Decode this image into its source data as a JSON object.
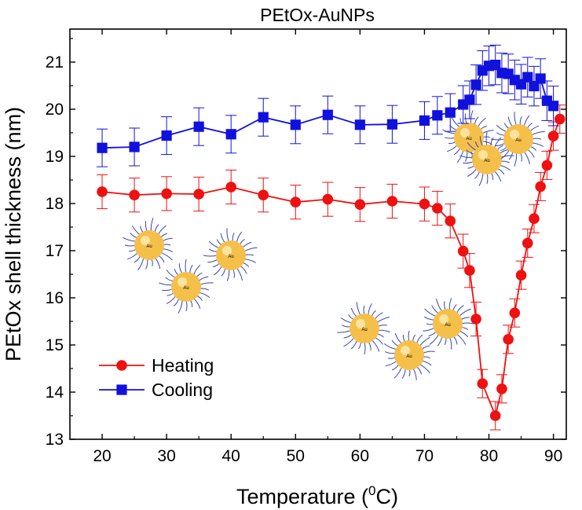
{
  "chart_data": {
    "type": "line",
    "title": "PEtOx-AuNPs",
    "xlabel": "Temperature (",
    "xlabel_sup": "0",
    "xlabel_end": "C)",
    "ylabel": "PEtOx shell thickness (nm)",
    "xlim": [
      15,
      92
    ],
    "ylim": [
      13,
      21.7
    ],
    "xticks": [
      20,
      30,
      40,
      50,
      60,
      70,
      80,
      90
    ],
    "yticks": [
      13,
      14,
      15,
      16,
      17,
      18,
      19,
      20,
      21
    ],
    "legend_position": "lower-left",
    "grid": false,
    "series": [
      {
        "name": "Heating",
        "color": "#ee1111",
        "marker": "circle",
        "x": [
          20,
          25,
          30,
          35,
          40,
          45,
          50,
          55,
          60,
          65,
          70,
          72,
          74,
          76,
          77,
          78,
          79,
          81,
          82,
          83,
          84,
          85,
          86,
          87,
          88,
          89,
          90,
          91
        ],
        "y": [
          18.25,
          18.18,
          18.21,
          18.2,
          18.35,
          18.18,
          18.03,
          18.09,
          17.98,
          18.05,
          17.99,
          17.9,
          17.63,
          16.99,
          16.58,
          15.55,
          14.18,
          13.5,
          14.07,
          15.12,
          15.68,
          16.48,
          17.16,
          17.68,
          18.36,
          18.81,
          19.43,
          19.79
        ],
        "error": [
          0.36,
          0.36,
          0.36,
          0.36,
          0.36,
          0.36,
          0.36,
          0.36,
          0.36,
          0.36,
          0.36,
          0.36,
          0.36,
          0.36,
          0.36,
          0.36,
          0.3,
          0.3,
          0.3,
          0.3,
          0.3,
          0.3,
          0.3,
          0.3,
          0.3,
          0.3,
          0.3,
          0.3
        ]
      },
      {
        "name": "Cooling",
        "color": "#1111dd",
        "marker": "square",
        "x": [
          20,
          25,
          30,
          35,
          40,
          45,
          50,
          55,
          60,
          65,
          70,
          72,
          74,
          76,
          77,
          78,
          79,
          80,
          81,
          82,
          83,
          84,
          85,
          86,
          87,
          88,
          89,
          90
        ],
        "y": [
          19.18,
          19.2,
          19.44,
          19.63,
          19.47,
          19.83,
          19.67,
          19.88,
          19.67,
          19.68,
          19.76,
          19.87,
          19.93,
          20.1,
          20.2,
          20.52,
          20.82,
          20.92,
          20.94,
          20.77,
          20.75,
          20.62,
          20.53,
          20.68,
          20.49,
          20.65,
          20.18,
          20.07
        ],
        "error": [
          0.4,
          0.4,
          0.4,
          0.4,
          0.4,
          0.4,
          0.4,
          0.4,
          0.4,
          0.4,
          0.4,
          0.4,
          0.4,
          0.4,
          0.4,
          0.42,
          0.42,
          0.42,
          0.42,
          0.42,
          0.42,
          0.42,
          0.42,
          0.42,
          0.42,
          0.42,
          0.42,
          0.42
        ]
      }
    ]
  },
  "nanoparticle_glyph_label": "Au",
  "colors": {
    "particle_core": "#f5c04a",
    "particle_highlight": "#fff3c4",
    "particle_chain": "#3344bb"
  }
}
